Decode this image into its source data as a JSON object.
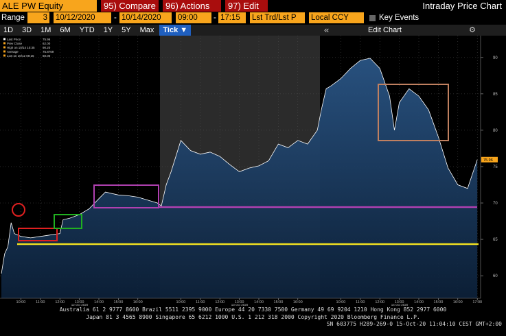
{
  "toolbar": {
    "security": "ALE PW Equity",
    "compare": "95) Compare",
    "actions": "96) Actions",
    "edit": "97) Edit",
    "title": "Intraday Price Chart"
  },
  "range_bar": {
    "label": "Range",
    "periods": "3",
    "start_date": "10/12/2020",
    "separator": "-",
    "end_date": "10/14/2020",
    "start_time": "09:00",
    "end_time": "17:15",
    "price_field": "Lst Trd/Lst P",
    "currency": "Local CCY",
    "key_events": "Key Events"
  },
  "period_buttons": [
    "1D",
    "3D",
    "1M",
    "6M",
    "YTD",
    "1Y",
    "5Y",
    "Max",
    "Tick ▼"
  ],
  "edit_chart": "Edit Chart",
  "chart_data": {
    "type": "line",
    "legend": [
      {
        "name": "Last Price",
        "value": "75.96"
      },
      {
        "name": "Prev Close",
        "value": "62.00"
      },
      {
        "name": "High on 10/14 10:35",
        "value": "90.20"
      },
      {
        "name": "Average",
        "value": "75.8769"
      },
      {
        "name": "Low on 10/12 09:15",
        "value": "60.00"
      }
    ],
    "last_price_label": "75.96",
    "day_labels": [
      "12 Oct 2020",
      "13 Oct 2020",
      "14 Oct 2020"
    ],
    "x": [
      "2020-10-12 09:00",
      "2020-10-12 09:10",
      "2020-10-12 09:20",
      "2020-10-12 09:30",
      "2020-10-12 09:40",
      "2020-10-12 10:00",
      "2020-10-12 10:30",
      "2020-10-12 11:00",
      "2020-10-12 11:30",
      "2020-10-12 12:00",
      "2020-10-12 12:10",
      "2020-10-12 12:30",
      "2020-10-12 13:00",
      "2020-10-12 13:30",
      "2020-10-12 14:00",
      "2020-10-12 14:20",
      "2020-10-12 15:00",
      "2020-10-12 15:30",
      "2020-10-12 16:00",
      "2020-10-12 16:30",
      "2020-10-12 17:00",
      "2020-10-13 09:00",
      "2020-10-13 09:15",
      "2020-10-13 09:30",
      "2020-10-13 10:00",
      "2020-10-13 10:30",
      "2020-10-13 11:00",
      "2020-10-13 11:30",
      "2020-10-13 12:00",
      "2020-10-13 12:30",
      "2020-10-13 13:00",
      "2020-10-13 13:30",
      "2020-10-13 14:00",
      "2020-10-13 14:30",
      "2020-10-13 15:00",
      "2020-10-13 15:30",
      "2020-10-13 16:00",
      "2020-10-13 16:30",
      "2020-10-13 17:00",
      "2020-10-14 09:00",
      "2020-10-14 09:15",
      "2020-10-14 09:30",
      "2020-10-14 10:00",
      "2020-10-14 10:30",
      "2020-10-14 11:00",
      "2020-10-14 11:30",
      "2020-10-14 12:00",
      "2020-10-14 12:30",
      "2020-10-14 12:45",
      "2020-10-14 13:00",
      "2020-10-14 13:30",
      "2020-10-14 14:00",
      "2020-10-14 14:30",
      "2020-10-14 15:00",
      "2020-10-14 15:30",
      "2020-10-14 16:00",
      "2020-10-14 16:30",
      "2020-10-14 17:00"
    ],
    "series": [
      {
        "name": "Last Price",
        "color": "#ffffff",
        "fill": "#1c3f66",
        "values": [
          60.3,
          63,
          64,
          67.3,
          65.8,
          65.4,
          65.2,
          65.4,
          65.6,
          65.8,
          67.7,
          67.9,
          68.4,
          69.2,
          70.6,
          71.5,
          71.1,
          71,
          70.8,
          70.4,
          70,
          69.6,
          72.5,
          74.3,
          78.6,
          77.2,
          76.7,
          77,
          76.4,
          75.3,
          74.3,
          74.8,
          75.1,
          75.8,
          78.1,
          77.6,
          78.6,
          78.1,
          80,
          82.8,
          85.7,
          86.1,
          87.1,
          88.5,
          89.6,
          89.9,
          88.5,
          84.7,
          80,
          83.8,
          85.7,
          84.7,
          82.8,
          79.1,
          74.8,
          72.5,
          72,
          75.96
        ]
      }
    ],
    "ylim": [
      56.9,
      93.0
    ],
    "yticks": [
      60,
      65,
      70,
      75,
      80,
      85,
      90
    ],
    "xticks": [
      {
        "value": "2020-10-12 10:00",
        "label": "10:00"
      },
      {
        "value": "2020-10-12 11:00",
        "label": "11:00"
      },
      {
        "value": "2020-10-12 12:00",
        "label": "12:00"
      },
      {
        "value": "2020-10-12 13:00",
        "label": "13:00"
      },
      {
        "value": "2020-10-12 14:00",
        "label": "14:00"
      },
      {
        "value": "2020-10-12 15:00",
        "label": "15:00"
      },
      {
        "value": "2020-10-12 16:00",
        "label": "16:00"
      },
      {
        "value": "2020-10-13 10:00",
        "label": "10:00"
      },
      {
        "value": "2020-10-13 11:00",
        "label": "11:00"
      },
      {
        "value": "2020-10-13 12:00",
        "label": "12:00"
      },
      {
        "value": "2020-10-13 13:00",
        "label": "13:00"
      },
      {
        "value": "2020-10-13 14:00",
        "label": "14:00"
      },
      {
        "value": "2020-10-13 15:00",
        "label": "15:00"
      },
      {
        "value": "2020-10-13 16:00",
        "label": "16:00"
      },
      {
        "value": "2020-10-14 10:00",
        "label": "10:00"
      },
      {
        "value": "2020-10-14 11:00",
        "label": "11:00"
      },
      {
        "value": "2020-10-14 12:00",
        "label": "12:00"
      },
      {
        "value": "2020-10-14 13:00",
        "label": "13:00"
      },
      {
        "value": "2020-10-14 14:00",
        "label": "14:00"
      },
      {
        "value": "2020-10-14 15:00",
        "label": "15:00"
      },
      {
        "value": "2020-10-14 16:00",
        "label": "16:00"
      },
      {
        "value": "2020-10-14 17:00",
        "label": "17:00"
      }
    ],
    "grid": true
  },
  "footer": [
    "Australia 61 2 9777 8600 Brazil 5511 2395 9000 Europe 44 20 7330 7500 Germany 49 69 9204 1210 Hong Kong 852 2977 6000",
    "Japan 81 3 4565 8900        Singapore 65 6212 1000        U.S. 1 212 318 2000        Copyright 2020 Bloomberg Finance L.P.",
    "SN 603775 H289-269-0 15-Oct-20 11:04:10 CEST GMT+2:00"
  ]
}
